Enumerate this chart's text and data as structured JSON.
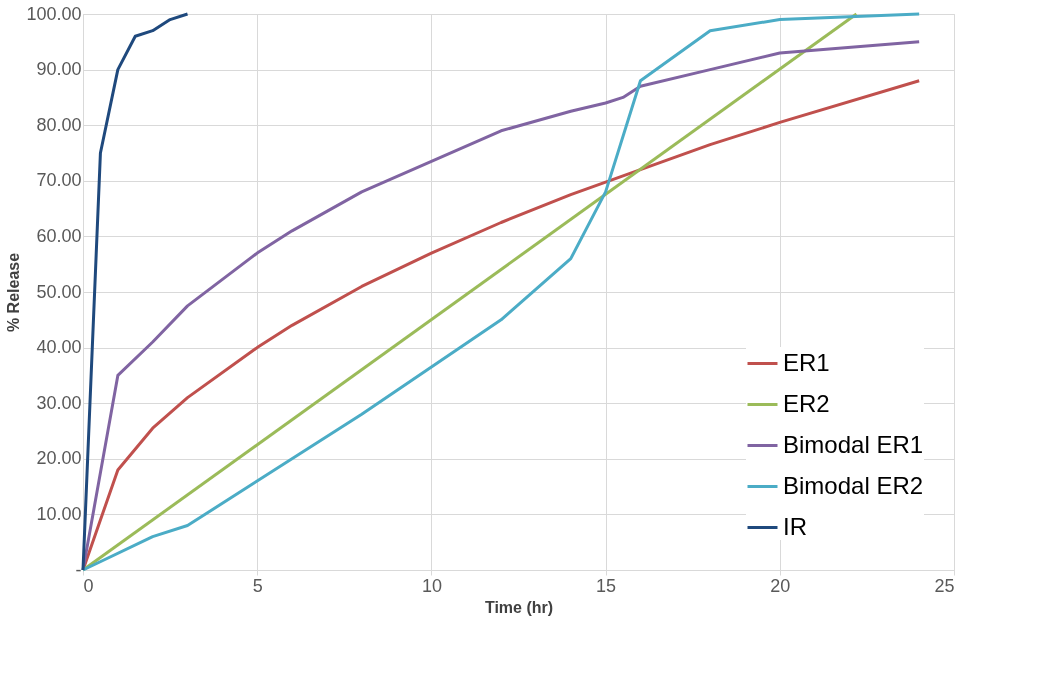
{
  "chart_data": {
    "type": "line",
    "xlabel": "Time (hr)",
    "ylabel": "% Release",
    "xlim": [
      0,
      25
    ],
    "xticks": [
      0,
      5,
      10,
      15,
      20,
      25
    ],
    "ylim": [
      0,
      100
    ],
    "yticks": [
      {
        "value": 0,
        "label": "-"
      },
      {
        "value": 10,
        "label": "10.00"
      },
      {
        "value": 20,
        "label": "20.00"
      },
      {
        "value": 30,
        "label": "30.00"
      },
      {
        "value": 40,
        "label": "40.00"
      },
      {
        "value": 50,
        "label": "50.00"
      },
      {
        "value": 60,
        "label": "60.00"
      },
      {
        "value": 70,
        "label": "70.00"
      },
      {
        "value": 80,
        "label": "80.00"
      },
      {
        "value": 90,
        "label": "90.00"
      },
      {
        "value": 100,
        "label": "100.00"
      }
    ],
    "grid": true,
    "legend": "bottom right",
    "marker": "none",
    "line_style": "solid",
    "series": [
      {
        "name": "ER1",
        "color": "#c0504d",
        "x": [
          0,
          1,
          2,
          3,
          5,
          6,
          8,
          10,
          12,
          14,
          16,
          18,
          20,
          24
        ],
        "values": [
          0,
          18,
          25.5,
          31,
          40,
          44,
          51,
          57,
          62.5,
          67.5,
          72,
          76.5,
          80.5,
          88
        ]
      },
      {
        "name": "ER2",
        "color": "#9bbb59",
        "x": [
          0,
          22.2
        ],
        "values": [
          0,
          100
        ]
      },
      {
        "name": "Bimodal ER1",
        "color": "#8064a2",
        "x": [
          0,
          1,
          2,
          3,
          5,
          6,
          8,
          10,
          12,
          14,
          15,
          15.5,
          16,
          18,
          20,
          24
        ],
        "values": [
          0,
          35,
          41,
          47.5,
          57,
          61,
          68,
          73.5,
          79,
          82.5,
          84,
          85,
          87,
          90,
          93,
          95
        ]
      },
      {
        "name": "Bimodal ER2",
        "color": "#4bacc6",
        "x": [
          0,
          2,
          3,
          8,
          12,
          14,
          15,
          16,
          18,
          20,
          24
        ],
        "values": [
          0,
          6,
          8,
          28,
          45,
          56,
          68,
          88,
          97,
          99,
          100
        ]
      },
      {
        "name": "IR",
        "color": "#1f497d",
        "x": [
          0,
          0.5,
          1,
          1.5,
          2,
          2.5,
          3
        ],
        "values": [
          0,
          75,
          90,
          96,
          97,
          99,
          100
        ]
      }
    ]
  }
}
